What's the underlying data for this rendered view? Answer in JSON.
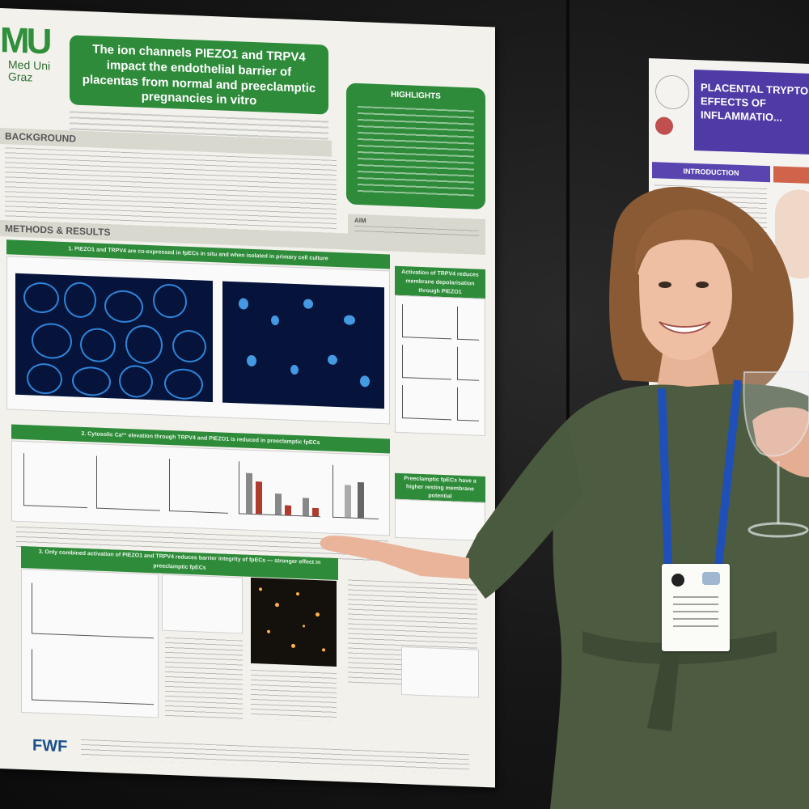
{
  "poster": {
    "logo": {
      "mark": "MU",
      "text": "Med Uni Graz"
    },
    "title": "The ion channels PIEZO1 and TRPV4 impact the endothelial barrier of placentas from normal and preeclamptic pregnancies in vitro",
    "highlights_heading": "HIGHLIGHTS",
    "aim_heading": "AIM",
    "background_heading": "BACKGROUND",
    "methods_heading": "METHODS & RESULTS",
    "section1": "1. PIEZO1 and TRPV4 are co-expressed in fpECs in situ and when isolated in primary cell culture",
    "section2": "2. Cytosolic Ca²⁺ elevation through TRPV4 and PIEZO1 is reduced in preeclamptic fpECs",
    "section3": "3. Only combined activation of PIEZO1 and TRPV4 reduces barrier integrity of fpECs — stronger effect in preeclamptic fpECs",
    "side1": "Activation of TRPV4 reduces membrane depolarisation through PIEZO1",
    "side2": "Preeclamptic fpECs have a higher resting membrane potential",
    "funder": "FWF"
  },
  "poster2": {
    "title": "PLACENTAL TRYPTOPHAN... EFFECTS OF INFLAMMATIO...",
    "intro_heading": "INTRODUCTION"
  },
  "colors": {
    "poster_green": "#2e8b3a",
    "poster2_purple": "#4f3aa6",
    "dress": "#4d5b40",
    "lanyard": "#1f4fb8"
  }
}
